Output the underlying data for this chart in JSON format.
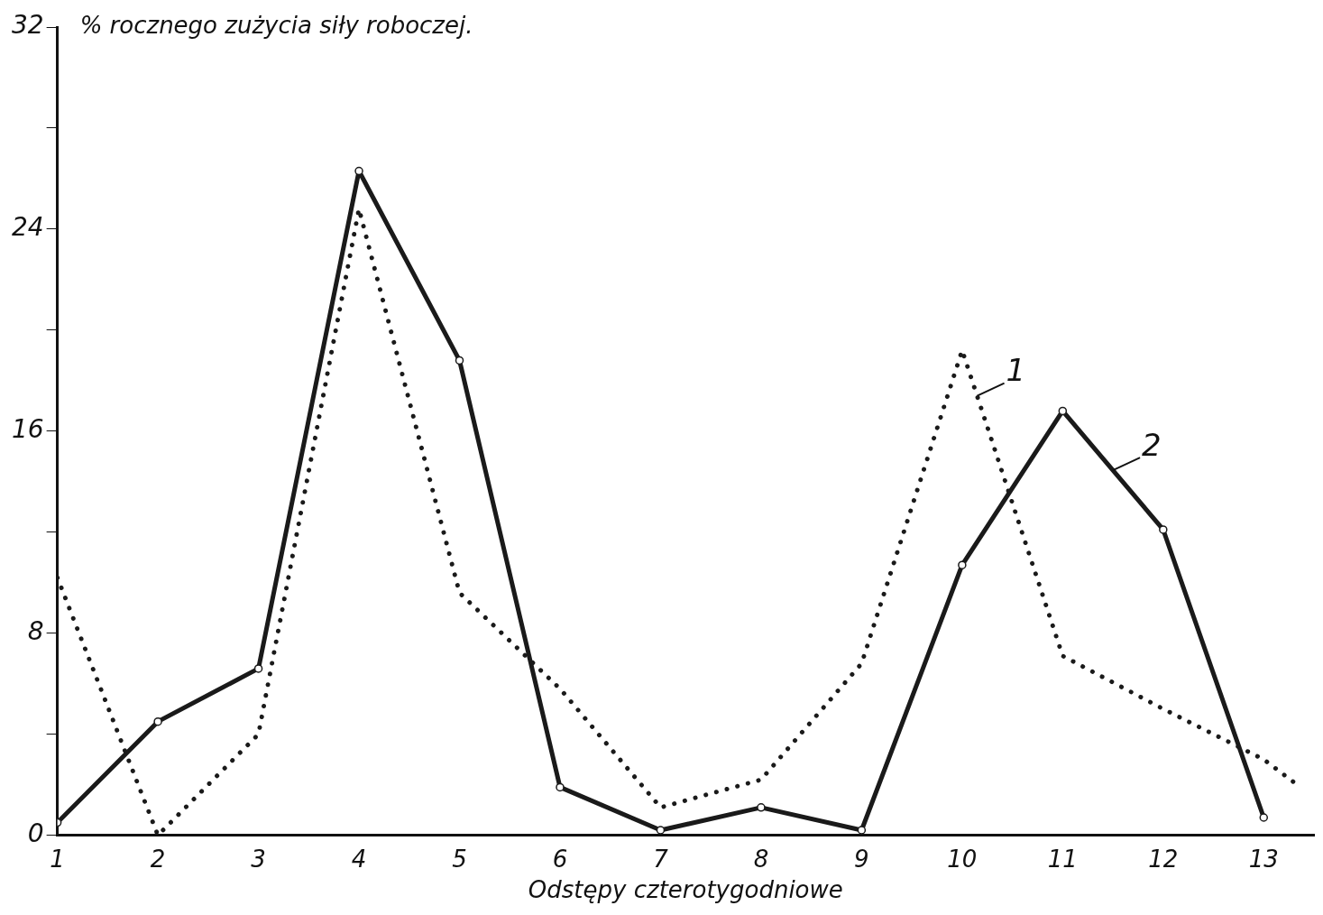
{
  "chart_data": {
    "type": "line",
    "ylabel": "% rocznego zużycia siły roboczej.",
    "xlabel": "Odstępy czterotygodniowe",
    "xlim": [
      1,
      13.5
    ],
    "xticks": [
      1,
      2,
      3,
      4,
      5,
      6,
      7,
      8,
      9,
      10,
      11,
      12,
      13
    ],
    "ylim": [
      0,
      32
    ],
    "yticks": [
      0,
      {
        "value": 4,
        "label": null
      },
      8,
      {
        "value": 12,
        "label": null
      },
      16,
      {
        "value": 20,
        "label": null
      },
      24,
      {
        "value": 28,
        "label": null
      },
      32
    ],
    "grid": false,
    "legend": false,
    "series": [
      {
        "color": "#1a1a1a",
        "line_style": "dotted",
        "marker": "none",
        "x": [
          1,
          2,
          3,
          4,
          5,
          6,
          7,
          8,
          9,
          10,
          11,
          12,
          13,
          13.3
        ],
        "values": [
          10.2,
          0,
          4.0,
          24.8,
          9.6,
          5.8,
          1.1,
          2.2,
          6.8,
          19.2,
          7.1,
          5.0,
          3.0,
          2.1
        ]
      },
      {
        "color": "#1a1a1a",
        "line_style": "solid",
        "marker": "circle",
        "x": [
          1,
          2,
          3,
          4,
          5,
          6,
          7,
          8,
          9,
          10,
          11,
          12,
          13
        ],
        "values": [
          0.5,
          4.5,
          6.6,
          26.3,
          18.8,
          1.9,
          0.2,
          1.1,
          0.2,
          10.7,
          16.8,
          12.1,
          0.7
        ]
      }
    ],
    "annotations": [
      {
        "text": "1",
        "x": 10.15,
        "y": 17.4
      },
      {
        "text": "2",
        "x": 11.5,
        "y": 14.45
      }
    ]
  }
}
